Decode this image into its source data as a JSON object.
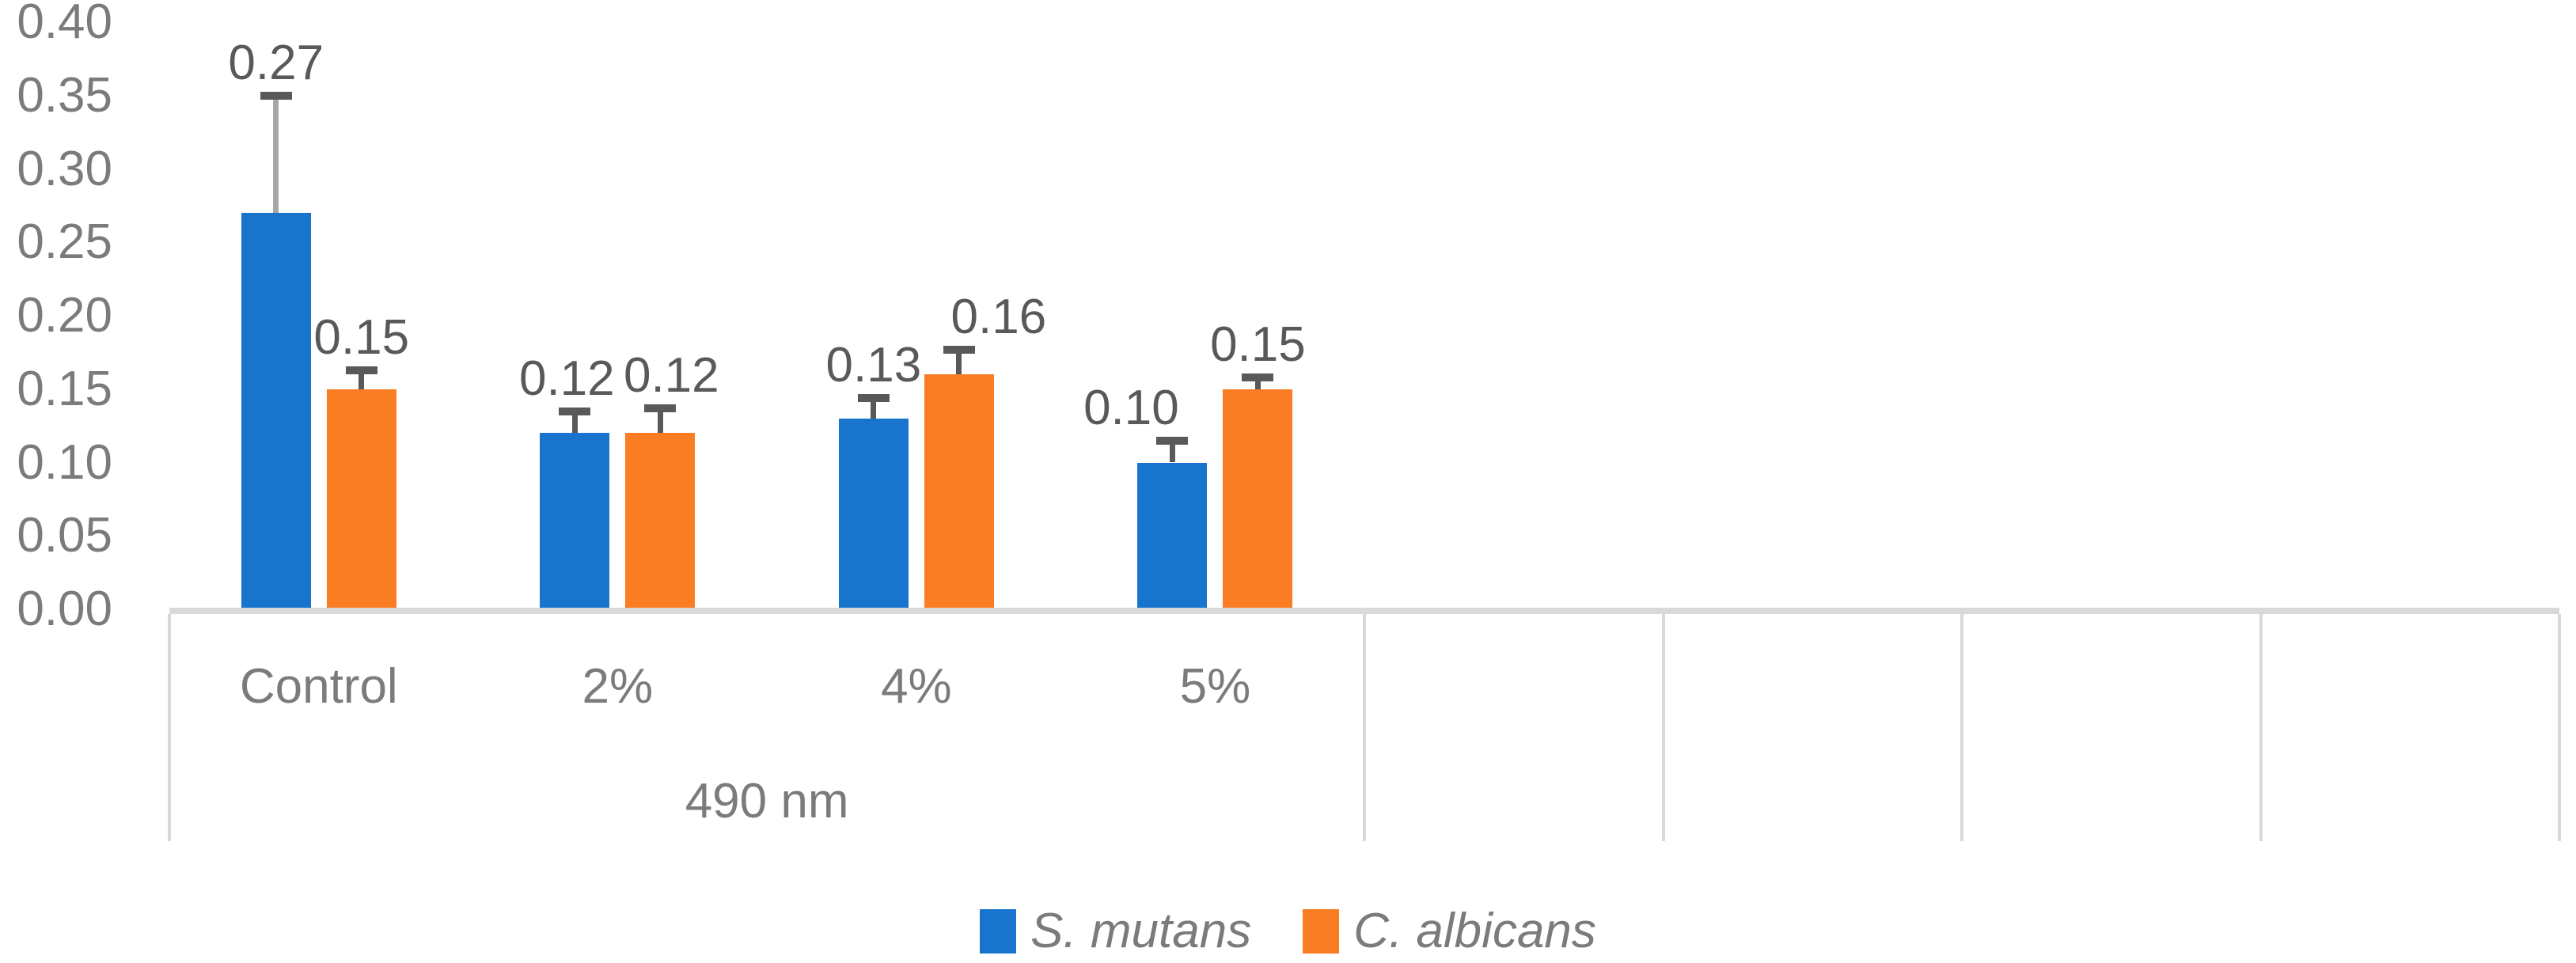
{
  "chart_data": {
    "type": "bar",
    "title": "",
    "categories": [
      "Control",
      "2%",
      "4%",
      "5%"
    ],
    "x_group_label": "490 nm",
    "empty_category_slots": 4,
    "y_ticks": [
      "0.40",
      "0.35",
      "0.30",
      "0.25",
      "0.20",
      "0.15",
      "0.10",
      "0.05",
      "0.00"
    ],
    "ylim": [
      0,
      0.4
    ],
    "y_tick_step": 0.05,
    "grid": "off",
    "legend_position": "bottom-center",
    "series": [
      {
        "name": "S. mutans",
        "color": "#1874CD",
        "values": [
          0.27,
          0.12,
          0.13,
          0.1
        ],
        "data_labels": [
          "0.27",
          "0.12",
          "0.13",
          "0.10"
        ],
        "errors_plus": [
          0.08,
          0.015,
          0.014,
          0.015
        ],
        "error_line_colors": [
          "#A6A6A6",
          "#595959",
          "#595959",
          "#595959"
        ],
        "label_dx": [
          0,
          -10,
          0,
          -52
        ]
      },
      {
        "name": "C. albicans",
        "color": "#FA7D23",
        "values": [
          0.15,
          0.12,
          0.16,
          0.15
        ],
        "data_labels": [
          "0.15",
          "0.12",
          "0.16",
          "0.15"
        ],
        "errors_plus": [
          0.013,
          0.017,
          0.017,
          0.008
        ],
        "error_line_colors": [
          "#595959",
          "#595959",
          "#595959",
          "#595959"
        ],
        "label_dx": [
          0,
          14,
          50,
          0
        ]
      }
    ]
  },
  "colors": {
    "background": "#FFFFFF",
    "axis_line": "#D9D9D9",
    "divider_line": "#D9D9D9",
    "tick_text": "#7B7B7B",
    "category_text": "#7B7B7B",
    "value_label_text": "#595959",
    "error_cap": "#595959",
    "legend_text": "#7B7B7B"
  }
}
